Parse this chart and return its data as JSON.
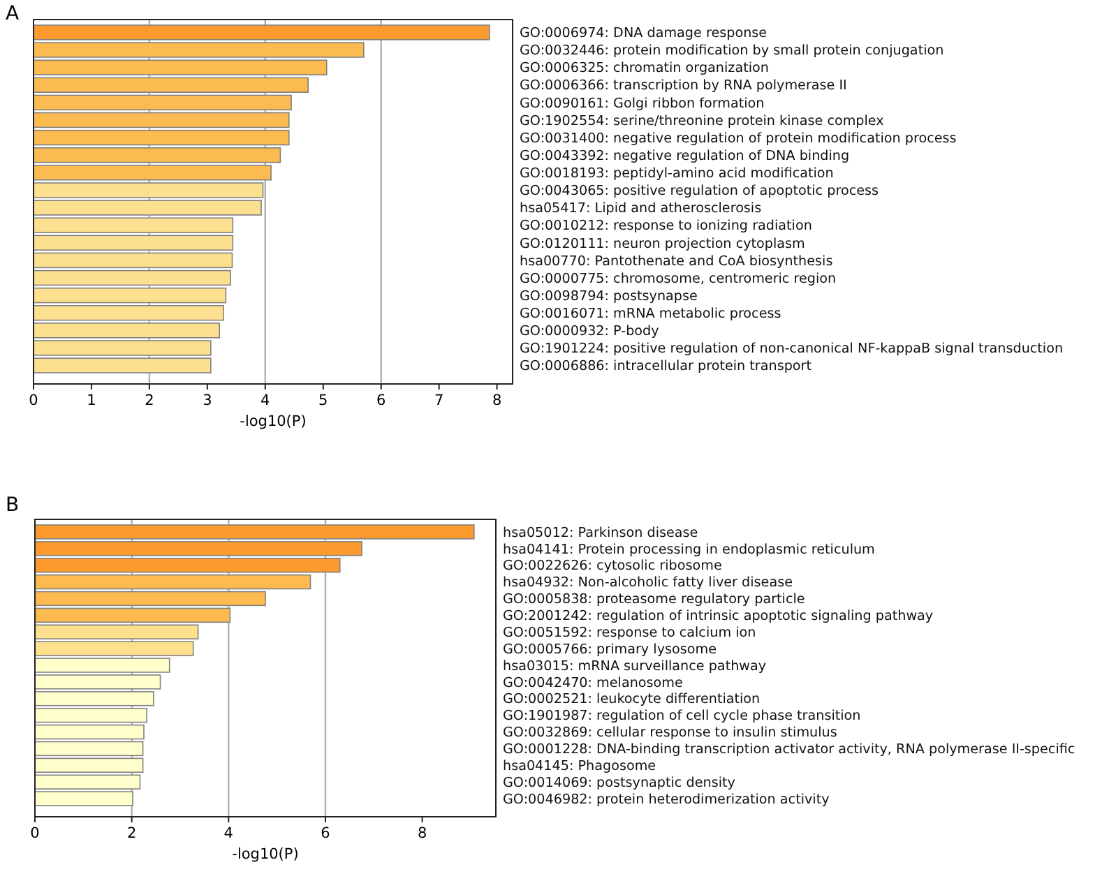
{
  "chart_data": [
    {
      "type": "bar",
      "title": "A",
      "orientation": "horizontal",
      "xlabel": "-log10(P)",
      "categories": [
        "GO:0006974: DNA damage response",
        "GO:0032446: protein modification by small protein conjugation",
        "GO:0006325: chromatin organization",
        "GO:0006366: transcription by RNA polymerase II",
        "GO:0090161: Golgi ribbon formation",
        "GO:1902554: serine/threonine protein kinase complex",
        "GO:0031400: negative regulation of protein modification process",
        "GO:0043392: negative regulation of DNA binding",
        "GO:0018193: peptidyl-amino acid modification",
        "GO:0043065: positive regulation of apoptotic process",
        "hsa05417: Lipid and atherosclerosis",
        "GO:0010212: response to ionizing radiation",
        "GO:0120111: neuron projection cytoplasm",
        "hsa00770: Pantothenate and CoA biosynthesis",
        "GO:0000775: chromosome, centromeric region",
        "GO:0098794: postsynapse",
        "GO:0016071: mRNA metabolic process",
        "GO:0000932: P-body",
        "GO:1901224: positive regulation of non-canonical NF-kappaB signal transduction",
        "GO:0006886: intracellular protein transport"
      ],
      "values": [
        7.87,
        5.7,
        5.06,
        4.74,
        4.45,
        4.41,
        4.41,
        4.26,
        4.1,
        3.96,
        3.93,
        3.44,
        3.44,
        3.43,
        3.4,
        3.32,
        3.28,
        3.21,
        3.06,
        3.06
      ],
      "colors": [
        "#fc9a30",
        "#fcbb50",
        "#fcbb50",
        "#fcbb50",
        "#fcbb50",
        "#fcbb50",
        "#fcbb50",
        "#fcbb50",
        "#fcbb50",
        "#fde08f",
        "#fde08f",
        "#fde08f",
        "#fde08f",
        "#fde08f",
        "#fde08f",
        "#fde08f",
        "#fde08f",
        "#fde08f",
        "#fde08f",
        "#fde08f"
      ],
      "xlim": [
        0,
        8.27
      ],
      "xticks": [
        0,
        1,
        2,
        3,
        4,
        5,
        6,
        7,
        8
      ],
      "ref_lines": [
        {
          "axis": "x",
          "value": 2,
          "color": "#b0b0b0"
        },
        {
          "axis": "x",
          "value": 4,
          "color": "#b0b0b0"
        },
        {
          "axis": "x",
          "value": 6,
          "color": "#b0b0b0"
        }
      ]
    },
    {
      "type": "bar",
      "title": "B",
      "orientation": "horizontal",
      "xlabel": "-log10(P)",
      "categories": [
        "hsa05012: Parkinson disease",
        "hsa04141: Protein processing in endoplasmic reticulum",
        "GO:0022626: cytosolic ribosome",
        "hsa04932: Non-alcoholic fatty liver disease",
        "GO:0005838: proteasome regulatory particle",
        "GO:2001242: regulation of intrinsic apoptotic signaling pathway",
        "GO:0051592: response to calcium ion",
        "GO:0005766: primary lysosome",
        "hsa03015: mRNA surveillance pathway",
        "GO:0042470: melanosome",
        "GO:0002521: leukocyte differentiation",
        "GO:1901987: regulation of cell cycle phase transition",
        "GO:0032869: cellular response to insulin stimulus",
        "GO:0001228: DNA-binding transcription activator activity, RNA polymerase II-specific",
        "hsa04145: Phagosome",
        "GO:0014069: postsynaptic density",
        "GO:0046982: protein heterodimerization activity"
      ],
      "values": [
        9.07,
        6.75,
        6.3,
        5.69,
        4.76,
        4.03,
        3.37,
        3.27,
        2.78,
        2.59,
        2.45,
        2.31,
        2.25,
        2.23,
        2.23,
        2.17,
        2.02
      ],
      "colors": [
        "#fd9a2e",
        "#fd9a2e",
        "#fd9a2e",
        "#fdbb4f",
        "#fdbb4f",
        "#fdbb4f",
        "#fddf8d",
        "#fddf8d",
        "#ffffcc",
        "#ffffcc",
        "#ffffcc",
        "#ffffcc",
        "#ffffcc",
        "#ffffcc",
        "#ffffcc",
        "#ffffcc",
        "#ffffcc"
      ],
      "xlim": [
        0,
        9.52
      ],
      "xticks": [
        0,
        2,
        4,
        6,
        8
      ],
      "ref_lines": [
        {
          "axis": "x",
          "value": 2,
          "color": "#b0b0b0"
        },
        {
          "axis": "x",
          "value": 4,
          "color": "#b0b0b0"
        },
        {
          "axis": "x",
          "value": 6,
          "color": "#b0b0b0"
        }
      ]
    }
  ]
}
